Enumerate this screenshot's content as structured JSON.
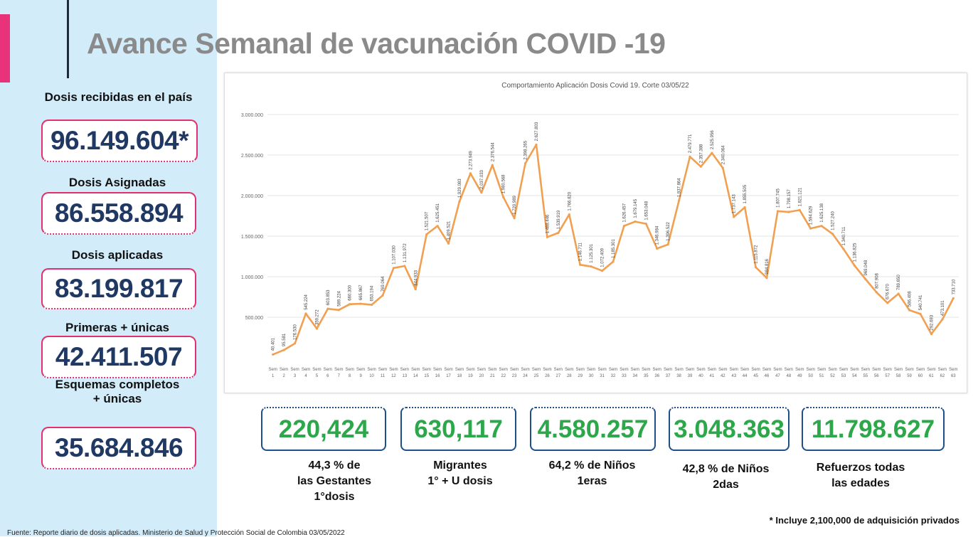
{
  "title": "Avance Semanal de vacunación COVID -19",
  "left": {
    "recibidas": {
      "label": "Dosis recibidas en el país",
      "value": "96.149.604*"
    },
    "asignadas": {
      "label": "Dosis Asignadas",
      "value": "86.558.894"
    },
    "aplicadas": {
      "label": "Dosis aplicadas",
      "value": "83.199.817"
    },
    "primeras": {
      "label": "Primeras + únicas",
      "value": "42.411.507"
    },
    "esquemas": {
      "label1": "Esquemas completos",
      "label2": "+ únicas",
      "value": "35.684.846"
    }
  },
  "bottom": [
    {
      "value": "220,424",
      "line1": "44,3 % de",
      "line2": "las Gestantes",
      "line3": "1°dosis"
    },
    {
      "value": "630,117",
      "line1": "Migrantes",
      "line2": "1° + U dosis",
      "line3": ""
    },
    {
      "value": "4.580.257",
      "line1": "64,2 % de Niños",
      "line2": "1eras",
      "line3": ""
    },
    {
      "value": "3.048.363",
      "line1": "42,8 % de Niños",
      "line2": "2das",
      "line3": ""
    },
    {
      "value": "11.798.627",
      "line1": "Refuerzos todas",
      "line2": "las edades",
      "line3": ""
    }
  ],
  "footnote": "* Incluye 2,100,000 de adquisición privados",
  "source": "Fuente: Reporte diario de dosis aplicadas. Ministerio de Salud y Protección Social de Colombia 03/05/2022",
  "colors": {
    "line": "#f0a050",
    "accent_pink": "#e0306f",
    "navy": "#1f3864",
    "green": "#2ca84a"
  },
  "chart_data": {
    "type": "line",
    "title": "Comportamiento Aplicación Dosis Covid 19. Corte 03/05/22",
    "ylim": [
      0,
      3000000
    ],
    "yticks": [
      "500.000",
      "1.000.000",
      "1.500.000",
      "2.000.000",
      "2.500.000",
      "3.000.000"
    ],
    "grid": true,
    "x": [
      "Sem 1",
      "Sem 2",
      "Sem 3",
      "Sem 4",
      "Sem 5",
      "Sem 6",
      "Sem 7",
      "Sem 8",
      "Sem 9",
      "Sem 10",
      "Sem 11",
      "Sem 12",
      "Sem 13",
      "Sem 14",
      "Sem 15",
      "Sem 16",
      "Sem 17",
      "Sem 18",
      "Sem 19",
      "Sem 20",
      "Sem 21",
      "Sem 22",
      "Sem 23",
      "Sem 24",
      "Sem 25",
      "Sem 26",
      "Sem 27",
      "Sem 28",
      "Sem 29",
      "Sem 30",
      "Sem 31",
      "Sem 32",
      "Sem 33",
      "Sem 34",
      "Sem 35",
      "Sem 36",
      "Sem 37",
      "Sem 38",
      "Sem 39",
      "Sem 40",
      "Sem 41",
      "Sem 42",
      "Sem 43",
      "Sem 44",
      "Sem 45",
      "Sem 46",
      "Sem 47",
      "Sem 48",
      "Sem 49",
      "Sem 50",
      "Sem 51",
      "Sem 52",
      "Sem 53",
      "Sem 54",
      "Sem 55",
      "Sem 56",
      "Sem 57",
      "Sem 58",
      "Sem 59",
      "Sem 60",
      "Sem 61",
      "Sem 62",
      "Sem 63"
    ],
    "values": [
      40401,
      95581,
      176530,
      545224,
      359272,
      603853,
      589224,
      660300,
      665867,
      653194,
      769064,
      1107030,
      1131972,
      844933,
      1521507,
      1625451,
      1409521,
      1929083,
      2273949,
      2037033,
      2376544,
      1980568,
      1720989,
      2398265,
      2627803,
      1488446,
      1539919,
      1766820,
      1146711,
      1125301,
      1072409,
      1185301,
      1626457,
      1679145,
      1653048,
      1346984,
      1396522,
      1937864,
      2479771,
      2357388,
      2525956,
      2340064,
      1737143,
      1855505,
      1115872,
      984816,
      1807745,
      1798157,
      1821121,
      1594629,
      1625138,
      1527240,
      1340711,
      1136825,
      969048,
      807908,
      676670,
      789650,
      586408,
      540741,
      292693,
      473101,
      733710
    ],
    "labels": [
      "40.401",
      "95.581",
      "176.530",
      "545.224",
      "359.272",
      "603.853",
      "589.224",
      "660.300",
      "665.867",
      "653.194",
      "769.064",
      "1.107.030",
      "1.131.972",
      "844.933",
      "1.521.507",
      "1.625.451",
      "1.409.521",
      "1.929.083",
      "2.273.949",
      "2.037.033",
      "2.376.544",
      "1.980.568",
      "1.720.989",
      "2.398.265",
      "2.627.803",
      "1.488.446",
      "1.539.919",
      "1.766.820",
      "1.146.711",
      "1.125.301",
      "1.072.409",
      "1.185.301",
      "1.626.457",
      "1.679.145",
      "1.653.048",
      "1.346.984",
      "1.396.522",
      "1.937.864",
      "2.479.771",
      "2.357.388",
      "2.525.956",
      "2.340.064",
      "1.737.143",
      "1.855.505",
      "1.115.872",
      "984.816",
      "1.807.745",
      "1.798.157",
      "1.821.121",
      "1.594.629",
      "1.625.138",
      "1.527.240",
      "1.340.711",
      "1.136.825",
      "969.048",
      "807.908",
      "676.670",
      "789.650",
      "586.408",
      "540.741",
      "292.693",
      "473.101",
      "733.710"
    ]
  }
}
